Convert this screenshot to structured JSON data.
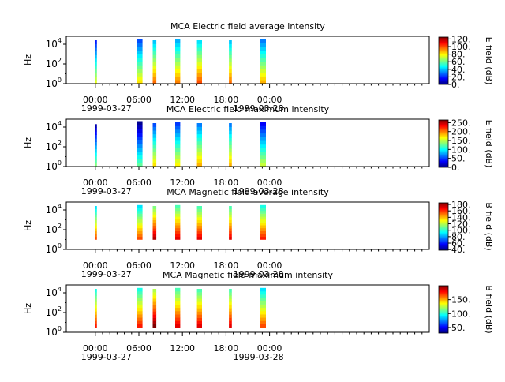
{
  "colorbar_colors": [
    "#00007f",
    "#0000ff",
    "#007fff",
    "#00ffff",
    "#7fff7f",
    "#ffff00",
    "#ff7f00",
    "#ff0000",
    "#7f0000"
  ],
  "chart_data": [
    {
      "type": "heatmap",
      "title": "MCA  Electric field average intensity",
      "ylabel": "Hz",
      "cbar_label": "E field (dB)",
      "cbar_range": [
        0,
        125
      ],
      "cbar_ticks": [
        "0.",
        "20.",
        "40.",
        "60.",
        "80.",
        "100.",
        "120."
      ],
      "cbar_tick_values": [
        0,
        20,
        40,
        60,
        80,
        100,
        120
      ],
      "y_scale": "log",
      "y_range_exp": [
        0,
        4.8
      ],
      "y_ticks": [
        {
          "base": "10",
          "exp": "0"
        },
        {
          "base": "10",
          "exp": "2"
        },
        {
          "base": "10",
          "exp": "4"
        }
      ],
      "x_range_hours": [
        -4,
        46
      ],
      "x_ticks": [
        "00:00",
        "06:00",
        "12:00",
        "18:00",
        "00:00"
      ],
      "x_tick_hours": [
        0,
        6,
        12,
        18,
        24
      ],
      "x_dates": [
        "1999-03-27",
        "1999-03-28"
      ],
      "intervals": [
        {
          "start": 0.0,
          "end": 0.15,
          "low": 0.0,
          "high": 4.4,
          "level": 0.25
        },
        {
          "start": 5.7,
          "end": 6.5,
          "low": 0.0,
          "high": 4.5,
          "level": 0.3
        },
        {
          "start": 7.9,
          "end": 8.4,
          "low": 0.0,
          "high": 4.4,
          "level": 0.42
        },
        {
          "start": 11.0,
          "end": 11.7,
          "low": 0.0,
          "high": 4.5,
          "level": 0.4
        },
        {
          "start": 14.0,
          "end": 14.7,
          "low": 0.0,
          "high": 4.4,
          "level": 0.45
        },
        {
          "start": 18.4,
          "end": 18.8,
          "low": 0.0,
          "high": 4.4,
          "level": 0.42
        },
        {
          "start": 22.7,
          "end": 23.5,
          "low": 0.0,
          "high": 4.5,
          "level": 0.35
        }
      ]
    },
    {
      "type": "heatmap",
      "title": "MCA  Electric field maximum intensity",
      "ylabel": "Hz",
      "cbar_label": "E field (dB)",
      "cbar_range": [
        0,
        265
      ],
      "cbar_ticks": [
        "0.",
        "50.",
        "100.",
        "150.",
        "200.",
        "250."
      ],
      "cbar_tick_values": [
        0,
        50,
        100,
        150,
        200,
        250
      ],
      "y_scale": "log",
      "y_range_exp": [
        0,
        4.8
      ],
      "y_ticks": [
        {
          "base": "10",
          "exp": "0"
        },
        {
          "base": "10",
          "exp": "2"
        },
        {
          "base": "10",
          "exp": "4"
        }
      ],
      "x_range_hours": [
        -4,
        46
      ],
      "x_ticks": [
        "00:00",
        "06:00",
        "12:00",
        "18:00",
        "00:00"
      ],
      "x_tick_hours": [
        0,
        6,
        12,
        18,
        24
      ],
      "x_dates": [
        "1999-03-27",
        "1999-03-28"
      ],
      "intervals": [
        {
          "start": 0.0,
          "end": 0.15,
          "low": 0.0,
          "high": 4.3,
          "level": 0.15
        },
        {
          "start": 5.7,
          "end": 6.5,
          "low": 0.0,
          "high": 4.6,
          "level": 0.12
        },
        {
          "start": 7.9,
          "end": 8.4,
          "low": 0.0,
          "high": 4.4,
          "level": 0.3
        },
        {
          "start": 11.0,
          "end": 11.7,
          "low": 0.0,
          "high": 4.5,
          "level": 0.28
        },
        {
          "start": 14.0,
          "end": 14.7,
          "low": 0.0,
          "high": 4.4,
          "level": 0.35
        },
        {
          "start": 18.4,
          "end": 18.8,
          "low": 0.0,
          "high": 4.4,
          "level": 0.35
        },
        {
          "start": 22.7,
          "end": 23.5,
          "low": 0.0,
          "high": 4.5,
          "level": 0.22
        }
      ]
    },
    {
      "type": "heatmap",
      "title": "MCA  Magnetic field average intensity",
      "ylabel": "Hz",
      "cbar_label": "B field (dB)",
      "cbar_range": [
        38,
        185
      ],
      "cbar_ticks": [
        "40.",
        "60.",
        "80.",
        "100.",
        "120.",
        "140.",
        "160.",
        "180."
      ],
      "cbar_tick_values": [
        40,
        60,
        80,
        100,
        120,
        140,
        160,
        180
      ],
      "y_scale": "log",
      "y_range_exp": [
        0,
        4.8
      ],
      "y_ticks": [
        {
          "base": "10",
          "exp": "0"
        },
        {
          "base": "10",
          "exp": "2"
        },
        {
          "base": "10",
          "exp": "4"
        }
      ],
      "x_range_hours": [
        -4,
        46
      ],
      "x_ticks": [
        "00:00",
        "06:00",
        "12:00",
        "18:00",
        "00:00"
      ],
      "x_tick_hours": [
        0,
        6,
        12,
        18,
        24
      ],
      "x_dates": [
        "1999-03-27",
        "1999-03-28"
      ],
      "intervals": [
        {
          "start": 0.0,
          "end": 0.15,
          "low": 1.0,
          "high": 4.4,
          "level": 0.45
        },
        {
          "start": 5.7,
          "end": 6.5,
          "low": 1.0,
          "high": 4.5,
          "level": 0.45
        },
        {
          "start": 7.9,
          "end": 8.4,
          "low": 1.0,
          "high": 4.4,
          "level": 0.6
        },
        {
          "start": 11.0,
          "end": 11.7,
          "low": 1.0,
          "high": 4.5,
          "level": 0.55
        },
        {
          "start": 14.0,
          "end": 14.7,
          "low": 1.0,
          "high": 4.4,
          "level": 0.55
        },
        {
          "start": 18.4,
          "end": 18.8,
          "low": 1.0,
          "high": 4.4,
          "level": 0.55
        },
        {
          "start": 22.7,
          "end": 23.5,
          "low": 1.0,
          "high": 4.5,
          "level": 0.5
        }
      ]
    },
    {
      "type": "heatmap",
      "title": "MCA  Magnetic field maximum intensity",
      "ylabel": "Hz",
      "cbar_label": "B field (dB)",
      "cbar_range": [
        30,
        200
      ],
      "cbar_ticks": [
        "50.",
        "100.",
        "150."
      ],
      "cbar_tick_values": [
        50,
        100,
        150
      ],
      "y_scale": "log",
      "y_range_exp": [
        0,
        4.8
      ],
      "y_ticks": [
        {
          "base": "10",
          "exp": "0"
        },
        {
          "base": "10",
          "exp": "2"
        },
        {
          "base": "10",
          "exp": "4"
        }
      ],
      "x_range_hours": [
        -4,
        46
      ],
      "x_ticks": [
        "00:00",
        "06:00",
        "12:00",
        "18:00",
        "00:00"
      ],
      "x_tick_hours": [
        0,
        6,
        12,
        18,
        24
      ],
      "x_dates": [
        "1999-03-27",
        "1999-03-28"
      ],
      "intervals": [
        {
          "start": 0.0,
          "end": 0.15,
          "low": 0.5,
          "high": 4.4,
          "level": 0.5
        },
        {
          "start": 5.7,
          "end": 6.5,
          "low": 0.5,
          "high": 4.5,
          "level": 0.5
        },
        {
          "start": 7.9,
          "end": 8.4,
          "low": 0.5,
          "high": 4.4,
          "level": 0.65
        },
        {
          "start": 11.0,
          "end": 11.7,
          "low": 0.5,
          "high": 4.5,
          "level": 0.55
        },
        {
          "start": 14.0,
          "end": 14.7,
          "low": 0.5,
          "high": 4.4,
          "level": 0.55
        },
        {
          "start": 18.4,
          "end": 18.8,
          "low": 0.5,
          "high": 4.4,
          "level": 0.55
        },
        {
          "start": 22.7,
          "end": 23.5,
          "low": 0.5,
          "high": 4.5,
          "level": 0.45
        }
      ]
    }
  ]
}
